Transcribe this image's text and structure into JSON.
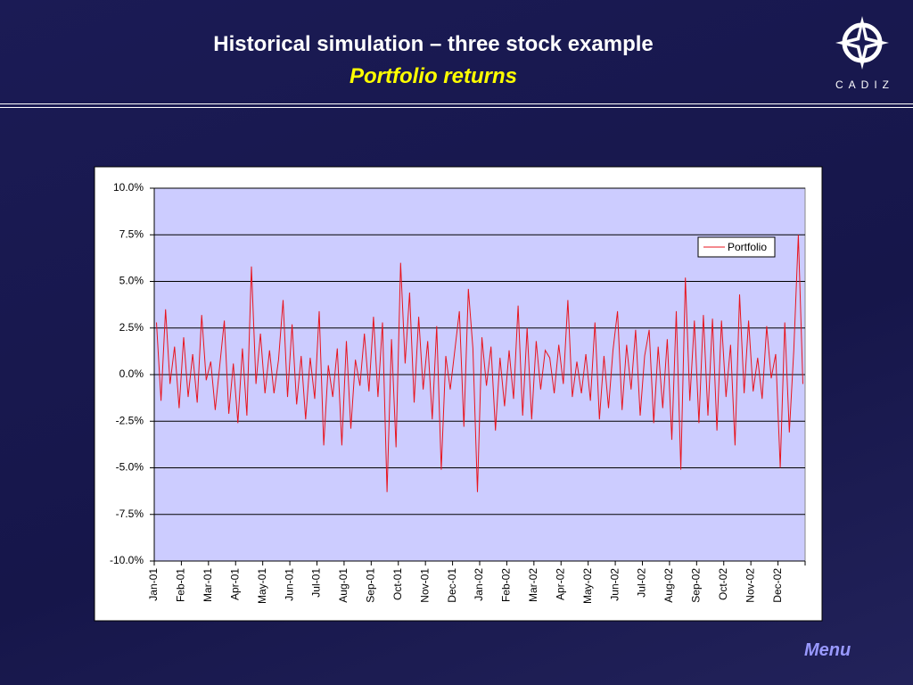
{
  "header": {
    "title": "Historical simulation – three stock example",
    "subtitle": "Portfolio returns"
  },
  "logo": {
    "text": "CADIZ"
  },
  "chart_data": {
    "type": "line",
    "ylim": [
      -10,
      10
    ],
    "yticks": [
      {
        "value": -10,
        "label": "-10.0%"
      },
      {
        "value": -7.5,
        "label": "-7.5%"
      },
      {
        "value": -5,
        "label": "-5.0%"
      },
      {
        "value": -2.5,
        "label": "-2.5%"
      },
      {
        "value": 0,
        "label": "0.0%"
      },
      {
        "value": 2.5,
        "label": "2.5%"
      },
      {
        "value": 5,
        "label": "5.0%"
      },
      {
        "value": 7.5,
        "label": "7.5%"
      },
      {
        "value": 10,
        "label": "10.0%"
      }
    ],
    "xticks": [
      "Jan-01",
      "Feb-01",
      "Mar-01",
      "Apr-01",
      "May-01",
      "Jun-01",
      "Jul-01",
      "Aug-01",
      "Sep-01",
      "Oct-01",
      "Nov-01",
      "Dec-01",
      "Jan-02",
      "Feb-02",
      "Mar-02",
      "Apr-02",
      "May-02",
      "Jun-02",
      "Jul-02",
      "Aug-02",
      "Sep-02",
      "Oct-02",
      "Nov-02",
      "Dec-02"
    ],
    "grid": true,
    "legend": "upper right",
    "plot_color": "#ccccff",
    "series": [
      {
        "name": "Portfolio",
        "color": "#e8141e",
        "values": [
          2.8,
          -1.4,
          3.5,
          -0.5,
          1.5,
          -1.8,
          2.0,
          -1.2,
          1.1,
          -1.5,
          3.2,
          -0.3,
          0.7,
          -1.9,
          0.5,
          2.9,
          -2.1,
          0.6,
          -2.6,
          1.4,
          -2.2,
          5.8,
          -0.5,
          2.2,
          -1.0,
          1.3,
          -1.0,
          0.8,
          4.0,
          -1.2,
          2.7,
          -1.6,
          1.0,
          -2.4,
          0.9,
          -1.3,
          3.4,
          -3.8,
          0.5,
          -1.2,
          1.4,
          -3.8,
          1.8,
          -2.9,
          0.8,
          -0.6,
          2.2,
          -0.9,
          3.1,
          -1.2,
          2.8,
          -6.3,
          1.9,
          -3.9,
          6.0,
          0.6,
          4.4,
          -1.5,
          3.1,
          -0.8,
          1.8,
          -2.4,
          2.6,
          -5.1,
          1.0,
          -0.8,
          1.3,
          3.4,
          -2.8,
          4.6,
          1.4,
          -6.3,
          2.0,
          -0.6,
          1.5,
          -3.0,
          0.9,
          -1.7,
          1.3,
          -1.3,
          3.7,
          -2.2,
          2.5,
          -2.4,
          1.8,
          -0.8,
          1.3,
          0.9,
          -1.0,
          1.6,
          -0.5,
          4.0,
          -1.2,
          0.7,
          -1.0,
          1.1,
          -1.4,
          2.8,
          -2.4,
          1.0,
          -1.8,
          1.3,
          3.4,
          -1.9,
          1.6,
          -0.8,
          2.4,
          -2.2,
          1.0,
          2.4,
          -2.6,
          1.5,
          -1.8,
          1.9,
          -3.5,
          3.4,
          -5.1,
          5.2,
          -1.4,
          2.9,
          -2.6,
          3.2,
          -2.2,
          3.0,
          -3.0,
          2.9,
          -1.2,
          1.6,
          -3.8,
          4.3,
          -1.0,
          2.9,
          -0.9,
          0.9,
          -1.3,
          2.6,
          -0.2,
          1.1,
          -5.0,
          2.8,
          -3.1,
          1.3,
          7.5,
          -0.5
        ]
      }
    ]
  },
  "footer": {
    "menu": "Menu"
  }
}
